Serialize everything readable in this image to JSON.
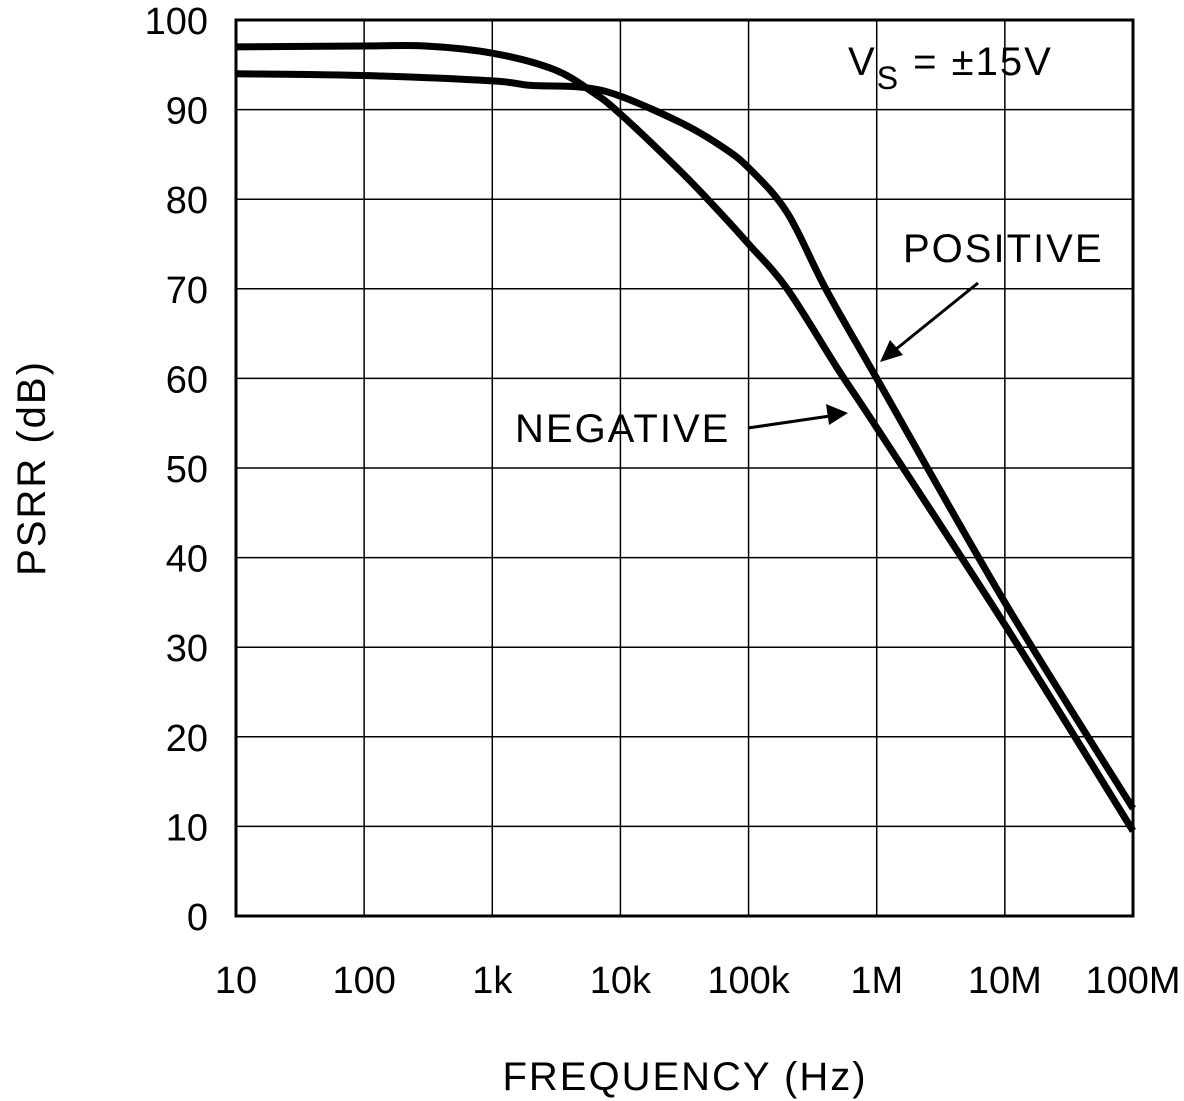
{
  "chart_data": {
    "type": "line",
    "title": "",
    "xlabel": "FREQUENCY (Hz)",
    "ylabel": "PSRR (dB)",
    "xscale": "log",
    "xlim": [
      10,
      100000000
    ],
    "ylim": [
      0,
      100
    ],
    "grid": true,
    "x_ticks": [
      10,
      100,
      1000,
      10000,
      100000,
      1000000,
      10000000,
      100000000
    ],
    "x_tick_labels": [
      "10",
      "100",
      "1k",
      "10k",
      "100k",
      "1M",
      "10M",
      "100M"
    ],
    "y_ticks": [
      0,
      10,
      20,
      30,
      40,
      50,
      60,
      70,
      80,
      90,
      100
    ],
    "y_tick_labels": [
      "0",
      "10",
      "20",
      "30",
      "40",
      "50",
      "60",
      "70",
      "80",
      "90",
      "100"
    ],
    "condition": {
      "main": "V",
      "sub": "S",
      "rest": " = ±15V"
    },
    "series": [
      {
        "name": "NEGATIVE",
        "x": [
          10,
          100,
          300,
          1000,
          3000,
          6000,
          10000,
          30000,
          60000,
          100000,
          200000,
          500000,
          1000000,
          10000000,
          100000000
        ],
        "y": [
          97,
          97.1,
          97.1,
          96.3,
          94.5,
          92,
          89.5,
          83,
          78.5,
          75,
          70,
          61,
          54.5,
          32.5,
          9.5
        ]
      },
      {
        "name": "POSITIVE",
        "x": [
          10,
          100,
          1000,
          2000,
          5000,
          10000,
          30000,
          60000,
          100000,
          200000,
          400000,
          1000000,
          10000000,
          100000000
        ],
        "y": [
          94,
          93.8,
          93.2,
          92.7,
          92.5,
          91.5,
          88.5,
          86,
          83.5,
          78.5,
          70,
          60,
          35,
          12
        ]
      }
    ],
    "annotations": [
      {
        "text": "POSITIVE",
        "points_to": [
          1000000,
          60
        ]
      },
      {
        "text": "NEGATIVE",
        "points_to": [
          600000,
          56
        ]
      }
    ]
  }
}
